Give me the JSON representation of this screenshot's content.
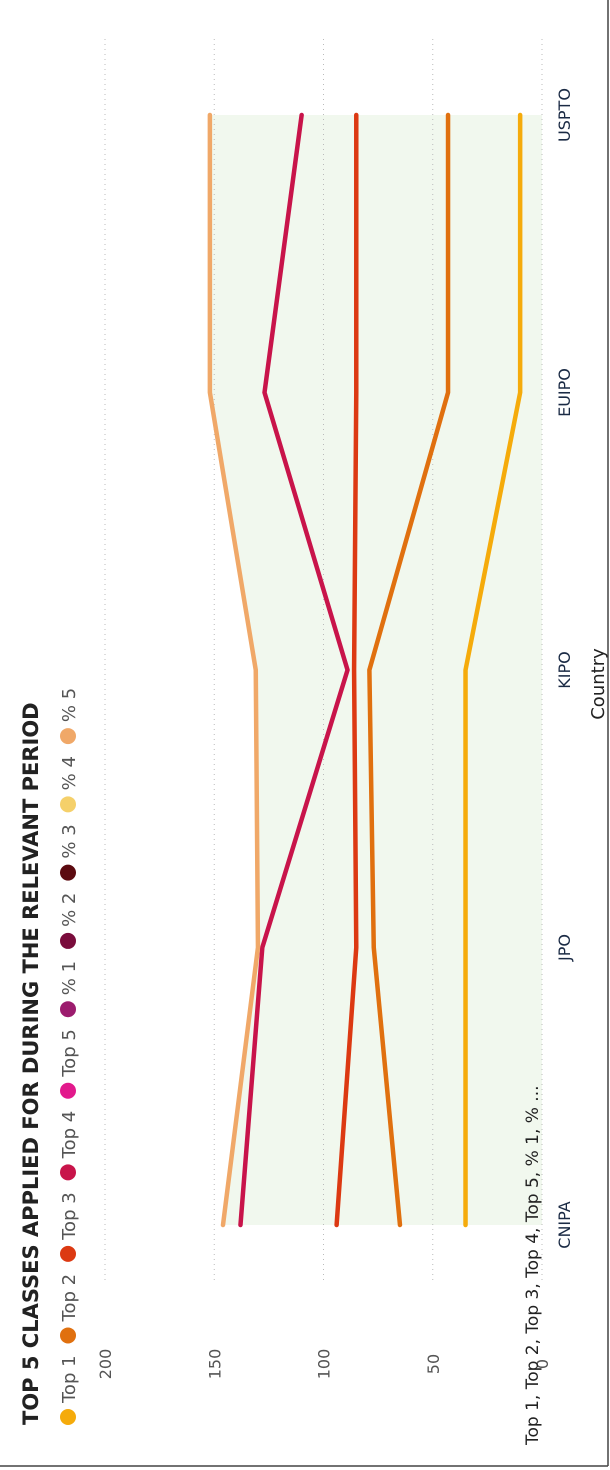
{
  "chart_data": {
    "type": "line",
    "title": "TOP 5 CLASSES APPLIED FOR DURING THE RELEVANT PERIOD",
    "xlabel": "Country",
    "ylabel": "Top 1, Top 2, Top 3, Top 4, Top 5, % 1, % ...",
    "categories": [
      "CNIPA",
      "JPO",
      "KIPO",
      "EUIPO",
      "USPTO"
    ],
    "ylim": [
      0,
      200
    ],
    "yticks": [
      0,
      50,
      100,
      150,
      200
    ],
    "legend_position": "top",
    "legend": [
      {
        "name": "Top 1",
        "color": "#f5ab0b"
      },
      {
        "name": "Top 2",
        "color": "#e0700f"
      },
      {
        "name": "Top 3",
        "color": "#dc3912"
      },
      {
        "name": "Top 4",
        "color": "#c8144a"
      },
      {
        "name": "Top 5",
        "color": "#e2198c"
      },
      {
        "name": "% 1",
        "color": "#9c1c6e"
      },
      {
        "name": "% 2",
        "color": "#7a0c3c"
      },
      {
        "name": "% 3",
        "color": "#5c0a10"
      },
      {
        "name": "% 4",
        "color": "#f5d06a"
      },
      {
        "name": "% 5",
        "color": "#f0a868"
      }
    ],
    "series": [
      {
        "name": "Top 1",
        "color": "#f5ab0b",
        "values": [
          35,
          35,
          35,
          10,
          10
        ]
      },
      {
        "name": "Top 2",
        "color": "#e0700f",
        "values": [
          65,
          77,
          79,
          43,
          43
        ]
      },
      {
        "name": "Top 3",
        "color": "#dc3912",
        "values": [
          94,
          85,
          86,
          85,
          85
        ]
      },
      {
        "name": "Top 4",
        "color": "#c8144a",
        "values": [
          138,
          128,
          89,
          127,
          110
        ]
      },
      {
        "name": "% 5",
        "color": "#f0a868",
        "values": [
          146,
          130,
          131,
          152,
          152
        ]
      }
    ],
    "band": {
      "upper": [
        146,
        130,
        131,
        152,
        152
      ],
      "lower": [
        0,
        0,
        0,
        0,
        0
      ],
      "color": "#f1f8ee"
    }
  }
}
